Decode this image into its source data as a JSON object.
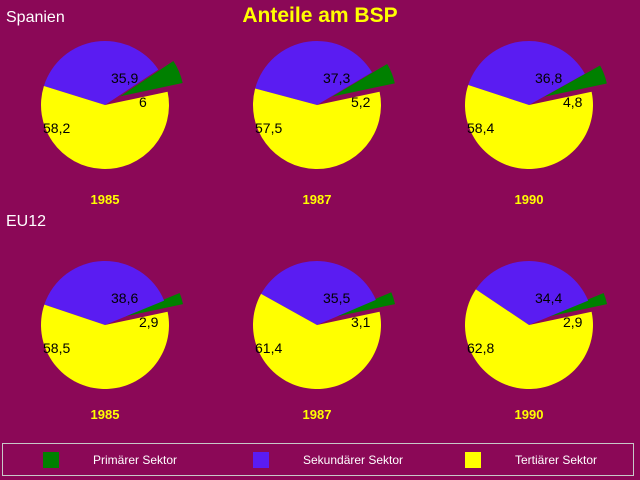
{
  "chart_data": {
    "type": "pie",
    "title": "Anteile am BSP",
    "legend": {
      "placement": "bottom",
      "entries": [
        {
          "name": "Primärer Sektor",
          "color": "#008000"
        },
        {
          "name": "Sekundärer Sektor",
          "color": "#5a1cf2"
        },
        {
          "name": "Tertiärer Sektor",
          "color": "#ffff00"
        }
      ]
    },
    "groups": [
      {
        "label": "Spanien",
        "charts": [
          {
            "year": "1985",
            "labels": [
              "6",
              "35,9",
              "58,2"
            ],
            "values": [
              6,
              35.9,
              58.2
            ]
          },
          {
            "year": "1987",
            "labels": [
              "5,2",
              "37,3",
              "57,5"
            ],
            "values": [
              5.2,
              37.3,
              57.5
            ]
          },
          {
            "year": "1990",
            "labels": [
              "4,8",
              "36,8",
              "58,4"
            ],
            "values": [
              4.8,
              36.8,
              58.4
            ]
          }
        ]
      },
      {
        "label": "EU12",
        "charts": [
          {
            "year": "1985",
            "labels": [
              "2,9",
              "38,6",
              "58,5"
            ],
            "values": [
              2.9,
              38.6,
              58.5
            ]
          },
          {
            "year": "1987",
            "labels": [
              "3,1",
              "35,5",
              "61,4"
            ],
            "values": [
              3.1,
              35.5,
              61.4
            ]
          },
          {
            "year": "1990",
            "labels": [
              "2,9",
              "34,4",
              "62,8"
            ],
            "values": [
              2.9,
              34.4,
              62.8
            ]
          }
        ]
      }
    ]
  }
}
